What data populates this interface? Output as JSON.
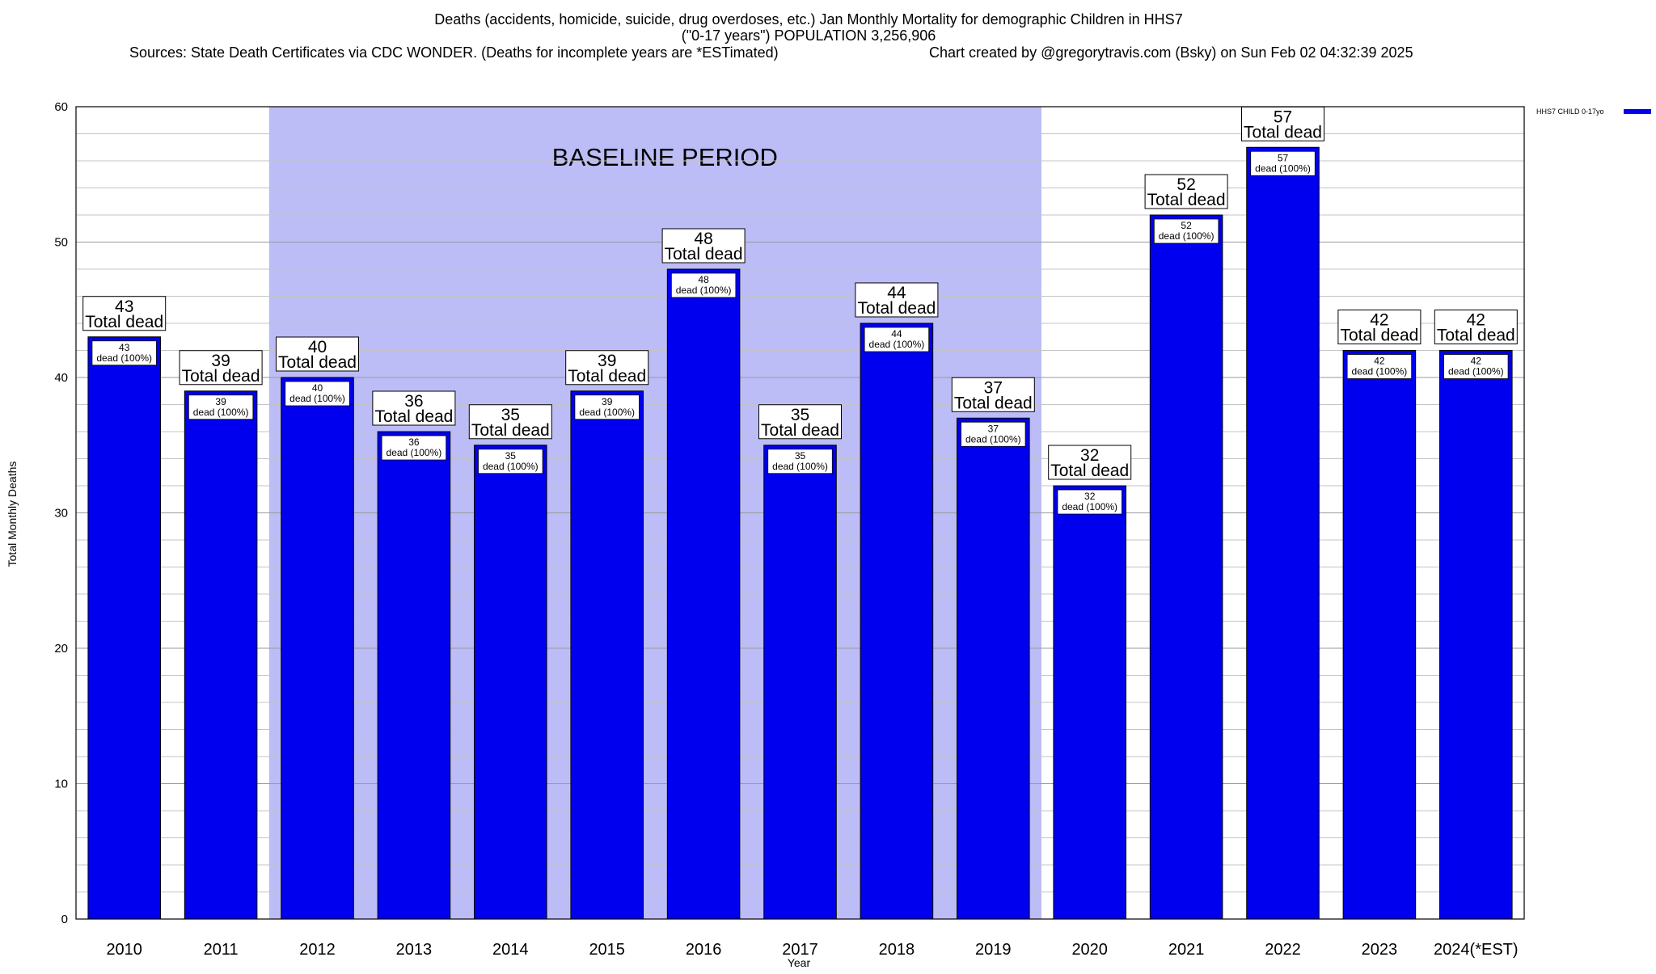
{
  "chart_data": {
    "type": "bar",
    "title": "Deaths (accidents, homicide, suicide, drug overdoses, etc.) Jan Monthly Mortality for demographic Children in HHS7",
    "subtitle": "(\"0-17 years\") POPULATION 3,256,906",
    "source_note": "Sources: State Death Certificates via CDC WONDER. (Deaths for incomplete years are *ESTimated)",
    "credit": "Chart created by @gregorytravis.com (Bsky) on Sun Feb 02 04:32:39 2025",
    "xlabel": "Year",
    "ylabel": "Total Monthly Deaths",
    "ylim": [
      0,
      60
    ],
    "y_ticks": [
      0,
      10,
      20,
      30,
      40,
      50,
      60
    ],
    "y_minor_step": 2,
    "grid": true,
    "categories": [
      "2010",
      "2011",
      "2012",
      "2013",
      "2014",
      "2015",
      "2016",
      "2017",
      "2018",
      "2019",
      "2020",
      "2021",
      "2022",
      "2023",
      "2024(*EST)"
    ],
    "series": [
      {
        "name": "HHS7 CHILD 0-17yo",
        "color": "#0000ee",
        "values": [
          43,
          39,
          40,
          36,
          35,
          39,
          48,
          35,
          44,
          37,
          32,
          52,
          57,
          42,
          42
        ]
      }
    ],
    "total_label_suffix": "Total dead",
    "inner_label_suffix": "dead (100%)",
    "baseline_period": {
      "label": "BASELINE PERIOD",
      "start_category": "2012",
      "end_category": "2019",
      "color": "#bcbcf6"
    },
    "legend_position": "top-right"
  }
}
